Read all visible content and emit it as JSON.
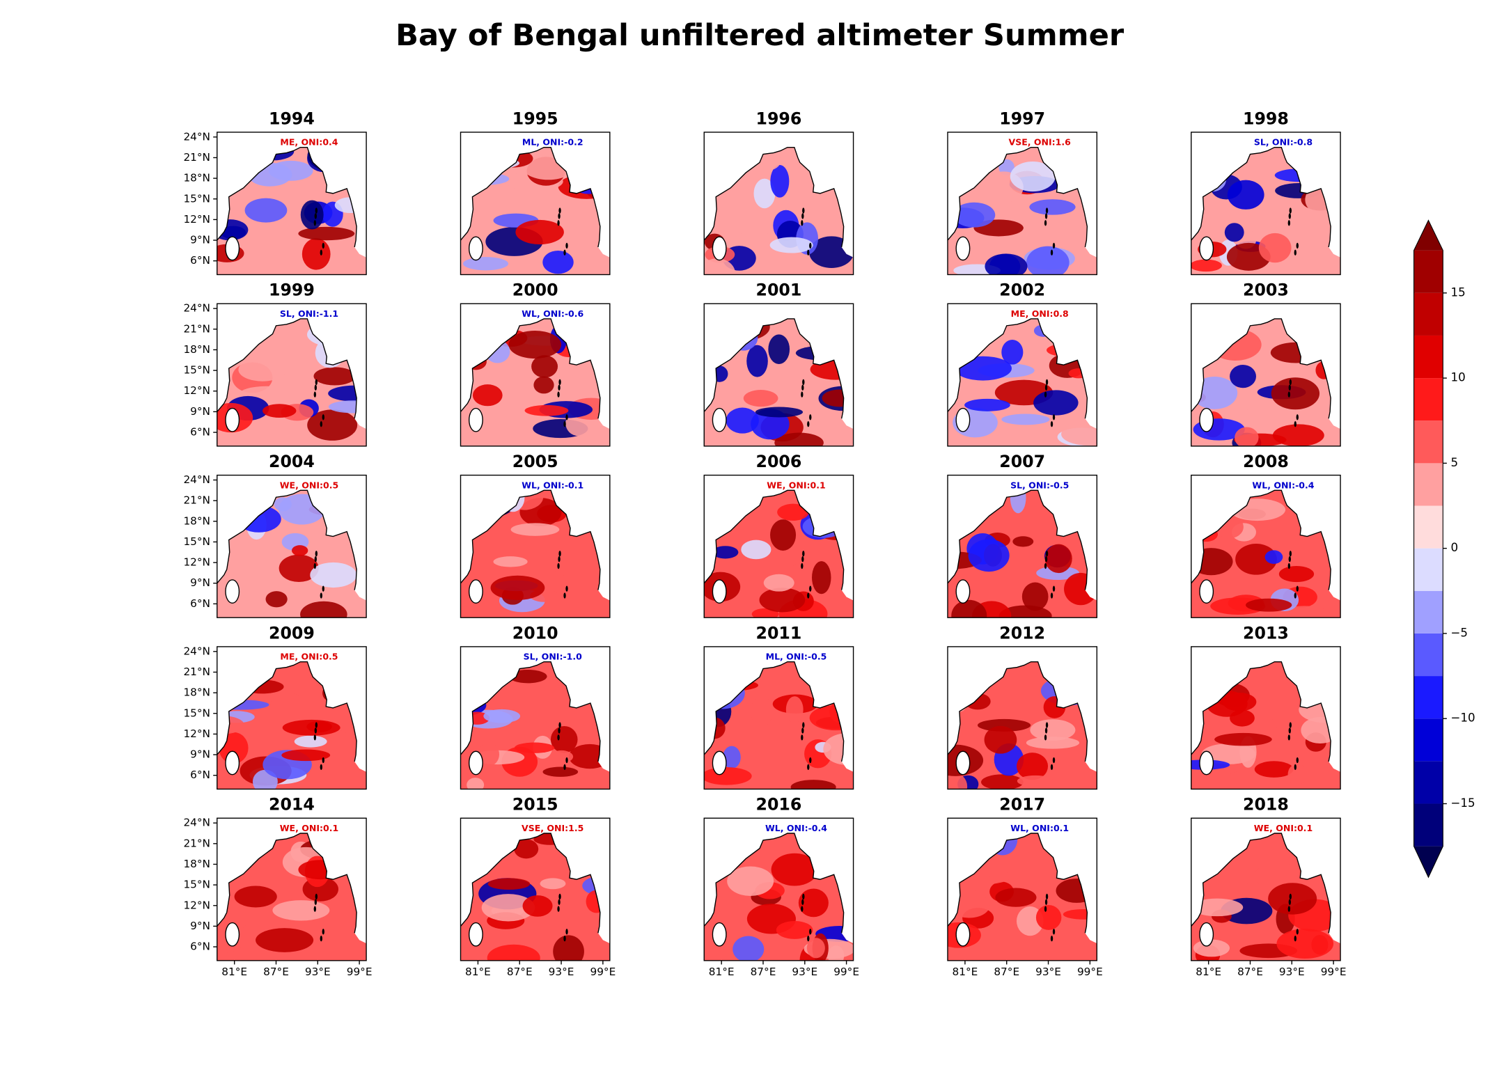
{
  "title": "Bay of Bengal unfiltered altimeter Summer",
  "chart_data": [
    {
      "type": "map",
      "title": "1994",
      "annotation": "ME, ONI:0.4",
      "annotation_color": "#dd0000",
      "xlim": [
        78.5,
        100
      ],
      "ylim": [
        4,
        24.7
      ],
      "yticks": [
        {
          "value": 24,
          "label": "24°N"
        },
        {
          "value": 21,
          "label": "21°N"
        },
        {
          "value": 18,
          "label": "18°N"
        },
        {
          "value": 15,
          "label": "15°N"
        },
        {
          "value": 12,
          "label": "12°N"
        },
        {
          "value": 9,
          "label": "9°N"
        },
        {
          "value": 6,
          "label": "6°N"
        }
      ]
    },
    {
      "type": "map",
      "title": "1995",
      "annotation": "ML, ONI:-0.2",
      "annotation_color": "#0000cc",
      "xlim": [
        78.5,
        100
      ],
      "ylim": [
        4,
        24.7
      ]
    },
    {
      "type": "map",
      "title": "1996",
      "xlim": [
        78.5,
        100
      ],
      "ylim": [
        4,
        24.7
      ]
    },
    {
      "type": "map",
      "title": "1997",
      "annotation": "VSE, ONI:1.6",
      "annotation_color": "#dd0000",
      "xlim": [
        78.5,
        100
      ],
      "ylim": [
        4,
        24.7
      ]
    },
    {
      "type": "map",
      "title": "1998",
      "annotation": "SL, ONI:-0.8",
      "annotation_color": "#0000cc",
      "xlim": [
        78.5,
        100
      ],
      "ylim": [
        4,
        24.7
      ]
    },
    {
      "type": "map",
      "title": "1999",
      "annotation": "SL, ONI:-1.1",
      "annotation_color": "#0000cc",
      "xlim": [
        78.5,
        100
      ],
      "ylim": [
        4,
        24.7
      ],
      "yticks": [
        {
          "value": 24,
          "label": "24°N"
        },
        {
          "value": 21,
          "label": "21°N"
        },
        {
          "value": 18,
          "label": "18°N"
        },
        {
          "value": 15,
          "label": "15°N"
        },
        {
          "value": 12,
          "label": "12°N"
        },
        {
          "value": 9,
          "label": "9°N"
        },
        {
          "value": 6,
          "label": "6°N"
        }
      ]
    },
    {
      "type": "map",
      "title": "2000",
      "annotation": "WL, ONI:-0.6",
      "annotation_color": "#0000cc",
      "xlim": [
        78.5,
        100
      ],
      "ylim": [
        4,
        24.7
      ]
    },
    {
      "type": "map",
      "title": "2001",
      "xlim": [
        78.5,
        100
      ],
      "ylim": [
        4,
        24.7
      ]
    },
    {
      "type": "map",
      "title": "2002",
      "annotation": "ME, ONI:0.8",
      "annotation_color": "#dd0000",
      "xlim": [
        78.5,
        100
      ],
      "ylim": [
        4,
        24.7
      ]
    },
    {
      "type": "map",
      "title": "2003",
      "xlim": [
        78.5,
        100
      ],
      "ylim": [
        4,
        24.7
      ]
    },
    {
      "type": "map",
      "title": "2004",
      "annotation": "WE, ONI:0.5",
      "annotation_color": "#dd0000",
      "xlim": [
        78.5,
        100
      ],
      "ylim": [
        4,
        24.7
      ],
      "yticks": [
        {
          "value": 24,
          "label": "24°N"
        },
        {
          "value": 21,
          "label": "21°N"
        },
        {
          "value": 18,
          "label": "18°N"
        },
        {
          "value": 15,
          "label": "15°N"
        },
        {
          "value": 12,
          "label": "12°N"
        },
        {
          "value": 9,
          "label": "9°N"
        },
        {
          "value": 6,
          "label": "6°N"
        }
      ]
    },
    {
      "type": "map",
      "title": "2005",
      "annotation": "WL, ONI:-0.1",
      "annotation_color": "#0000cc",
      "xlim": [
        78.5,
        100
      ],
      "ylim": [
        4,
        24.7
      ]
    },
    {
      "type": "map",
      "title": "2006",
      "annotation": "WE, ONI:0.1",
      "annotation_color": "#dd0000",
      "xlim": [
        78.5,
        100
      ],
      "ylim": [
        4,
        24.7
      ]
    },
    {
      "type": "map",
      "title": "2007",
      "annotation": "SL, ONI:-0.5",
      "annotation_color": "#0000cc",
      "xlim": [
        78.5,
        100
      ],
      "ylim": [
        4,
        24.7
      ]
    },
    {
      "type": "map",
      "title": "2008",
      "annotation": "WL, ONI:-0.4",
      "annotation_color": "#0000cc",
      "xlim": [
        78.5,
        100
      ],
      "ylim": [
        4,
        24.7
      ]
    },
    {
      "type": "map",
      "title": "2009",
      "annotation": "ME, ONI:0.5",
      "annotation_color": "#dd0000",
      "xlim": [
        78.5,
        100
      ],
      "ylim": [
        4,
        24.7
      ],
      "yticks": [
        {
          "value": 24,
          "label": "24°N"
        },
        {
          "value": 21,
          "label": "21°N"
        },
        {
          "value": 18,
          "label": "18°N"
        },
        {
          "value": 15,
          "label": "15°N"
        },
        {
          "value": 12,
          "label": "12°N"
        },
        {
          "value": 9,
          "label": "9°N"
        },
        {
          "value": 6,
          "label": "6°N"
        }
      ]
    },
    {
      "type": "map",
      "title": "2010",
      "annotation": "SL, ONI:-1.0",
      "annotation_color": "#0000cc",
      "xlim": [
        78.5,
        100
      ],
      "ylim": [
        4,
        24.7
      ]
    },
    {
      "type": "map",
      "title": "2011",
      "annotation": "ML, ONI:-0.5",
      "annotation_color": "#0000cc",
      "xlim": [
        78.5,
        100
      ],
      "ylim": [
        4,
        24.7
      ]
    },
    {
      "type": "map",
      "title": "2012",
      "xlim": [
        78.5,
        100
      ],
      "ylim": [
        4,
        24.7
      ]
    },
    {
      "type": "map",
      "title": "2013",
      "xlim": [
        78.5,
        100
      ],
      "ylim": [
        4,
        24.7
      ]
    },
    {
      "type": "map",
      "title": "2014",
      "annotation": "WE, ONI:0.1",
      "annotation_color": "#dd0000",
      "xlim": [
        78.5,
        100
      ],
      "ylim": [
        4,
        24.7
      ],
      "yticks": [
        {
          "value": 24,
          "label": "24°N"
        },
        {
          "value": 21,
          "label": "21°N"
        },
        {
          "value": 18,
          "label": "18°N"
        },
        {
          "value": 15,
          "label": "15°N"
        },
        {
          "value": 12,
          "label": "12°N"
        },
        {
          "value": 9,
          "label": "9°N"
        },
        {
          "value": 6,
          "label": "6°N"
        }
      ],
      "xticks": [
        {
          "value": 81,
          "label": "81°E"
        },
        {
          "value": 87,
          "label": "87°E"
        },
        {
          "value": 93,
          "label": "93°E"
        },
        {
          "value": 99,
          "label": "99°E"
        }
      ]
    },
    {
      "type": "map",
      "title": "2015",
      "annotation": "VSE, ONI:1.5",
      "annotation_color": "#dd0000",
      "xlim": [
        78.5,
        100
      ],
      "ylim": [
        4,
        24.7
      ],
      "xticks": [
        {
          "value": 81,
          "label": "81°E"
        },
        {
          "value": 87,
          "label": "87°E"
        },
        {
          "value": 93,
          "label": "93°E"
        },
        {
          "value": 99,
          "label": "99°E"
        }
      ]
    },
    {
      "type": "map",
      "title": "2016",
      "annotation": "WL, ONI:-0.4",
      "annotation_color": "#0000cc",
      "xlim": [
        78.5,
        100
      ],
      "ylim": [
        4,
        24.7
      ],
      "xticks": [
        {
          "value": 81,
          "label": "81°E"
        },
        {
          "value": 87,
          "label": "87°E"
        },
        {
          "value": 93,
          "label": "93°E"
        },
        {
          "value": 99,
          "label": "99°E"
        }
      ]
    },
    {
      "type": "map",
      "title": "2017",
      "annotation": "WL, ONI:0.1",
      "annotation_color": "#0000cc",
      "xlim": [
        78.5,
        100
      ],
      "ylim": [
        4,
        24.7
      ],
      "xticks": [
        {
          "value": 81,
          "label": "81°E"
        },
        {
          "value": 87,
          "label": "87°E"
        },
        {
          "value": 93,
          "label": "93°E"
        },
        {
          "value": 99,
          "label": "99°E"
        }
      ]
    },
    {
      "type": "map",
      "title": "2018",
      "annotation": "WE, ONI:0.1",
      "annotation_color": "#dd0000",
      "xlim": [
        78.5,
        100
      ],
      "ylim": [
        4,
        24.7
      ],
      "xticks": [
        {
          "value": 81,
          "label": "81°E"
        },
        {
          "value": 87,
          "label": "87°E"
        },
        {
          "value": 93,
          "label": "93°E"
        },
        {
          "value": 99,
          "label": "99°E"
        }
      ]
    }
  ],
  "colorbar": {
    "levels": [
      -17.5,
      -15,
      -12.5,
      -10,
      -7.5,
      -5,
      -2.5,
      0,
      2.5,
      5,
      7.5,
      10,
      12.5,
      15,
      17.5
    ],
    "colors": [
      "#00007a",
      "#0000a8",
      "#0000d8",
      "#1a1aff",
      "#5a5aff",
      "#a0a0ff",
      "#dcdcff",
      "#ffdcdc",
      "#ffa0a0",
      "#ff5a5a",
      "#ff1a1a",
      "#e00000",
      "#c00000",
      "#a00000"
    ],
    "extend": "both",
    "under_color": "#000050",
    "over_color": "#800000",
    "ticks": [
      {
        "value": -15,
        "label": "−15"
      },
      {
        "value": -10,
        "label": "−10"
      },
      {
        "value": -5,
        "label": "−5"
      },
      0,
      5,
      10,
      15
    ]
  }
}
